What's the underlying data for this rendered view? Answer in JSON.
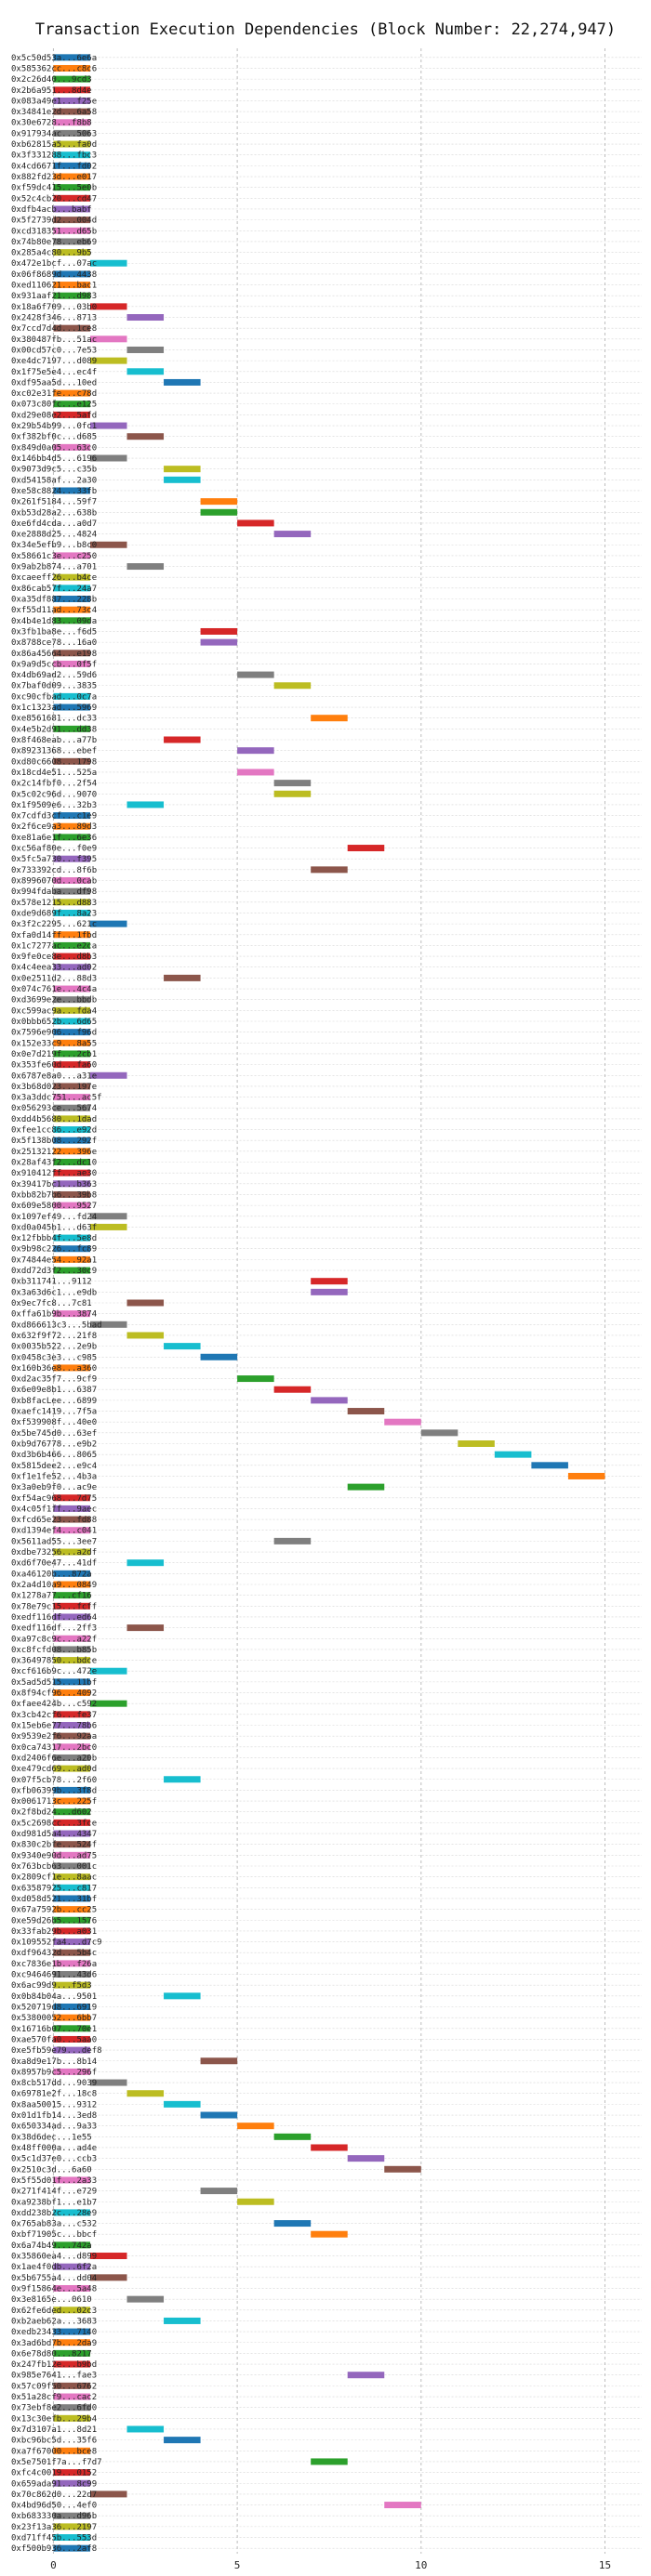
{
  "chart_data": {
    "type": "gantt",
    "title": "Transaction Execution Dependencies (Block Number: 22,274,947)",
    "xlabel": "",
    "ylabel": "",
    "xlim": [
      -1.2,
      16
    ],
    "xticks": [
      0,
      5,
      10,
      15
    ],
    "grid": true,
    "legend": "none",
    "palette": [
      "#1f77b4",
      "#ff7f0e",
      "#2ca02c",
      "#d62728",
      "#9467bd",
      "#8c564b",
      "#e377c2",
      "#7f7f7f",
      "#bcbd22",
      "#17becf"
    ],
    "transactions": [
      [
        "0x5c50d53a...6e6a",
        0
      ],
      [
        "0x585362cc...c8c6",
        0
      ],
      [
        "0x2c26d40...9cd3",
        0
      ],
      [
        "0x2b6a951...8d4e",
        0
      ],
      [
        "0x083a49e1...f25e",
        0
      ],
      [
        "0x34841e2d...6a58",
        0
      ],
      [
        "0x30e6728...f8b8",
        0
      ],
      [
        "0x917934ac...5063",
        0
      ],
      [
        "0xb62815a5...fa0d",
        0
      ],
      [
        "0x3f331288...fbc3",
        0
      ],
      [
        "0x4cd6671f...fd02",
        0
      ],
      [
        "0x882fd23d...e017",
        0
      ],
      [
        "0xf59dc415...5e0b",
        0
      ],
      [
        "0x52c4cb20...cd47",
        0
      ],
      [
        "0xdfb4acb...babf",
        0
      ],
      [
        "0x5f2739d2...004d",
        0
      ],
      [
        "0xcd318351...d65b",
        0
      ],
      [
        "0x74b80e78...eb69",
        0
      ],
      [
        "0x285a4c80...9b5",
        0
      ],
      [
        "0x472e1bcf...07ac",
        1
      ],
      [
        "0x06f8689d...4438",
        0
      ],
      [
        "0xed110621...bac1",
        0
      ],
      [
        "0x931aaf21...d983",
        0
      ],
      [
        "0x18a6f709...03b0",
        1
      ],
      [
        "0x2428f346...8713",
        2
      ],
      [
        "0x7ccd7d4d...1ce8",
        0
      ],
      [
        "0x380487fb...51ac",
        1
      ],
      [
        "0x00cd57c0...7e53",
        2
      ],
      [
        "0xe4dc7197...d089",
        1
      ],
      [
        "0x1f75e5e4...ec4f",
        2
      ],
      [
        "0xdf95aa5d...10ed",
        3
      ],
      [
        "0xc02e31fe...c78d",
        0
      ],
      [
        "0x073c80fc...e125",
        0
      ],
      [
        "0xd29e08e2...5afd",
        0
      ],
      [
        "0x29b54b99...0fc1",
        1
      ],
      [
        "0xf382bf0c...d685",
        2
      ],
      [
        "0x849d0a05...63c0",
        0
      ],
      [
        "0x146bb4d5...6196",
        1
      ],
      [
        "0x9073d9c5...c35b",
        3
      ],
      [
        "0xd54158af...2a30",
        3
      ],
      [
        "0xe58c8824...33fb",
        0
      ],
      [
        "0x261f5184...59f7",
        4
      ],
      [
        "0xb53d28a2...638b",
        4
      ],
      [
        "0xe6fd4cda...a0d7",
        5
      ],
      [
        "0xe2888d25...4824",
        6
      ],
      [
        "0x34e5efb9...b8c0",
        1
      ],
      [
        "0x58661c3e...c250",
        0
      ],
      [
        "0x9ab2b874...a701",
        2
      ],
      [
        "0xcaeeff26...b4ce",
        0
      ],
      [
        "0x86cab57f...24a7",
        0
      ],
      [
        "0xa35df887...228b",
        0
      ],
      [
        "0xf55d11ad...73c4",
        0
      ],
      [
        "0x4b4e1d83...09da",
        0
      ],
      [
        "0x3fb1ba8e...f6d5",
        4
      ],
      [
        "0x8788ce78...16a0",
        4
      ],
      [
        "0x86a45664...e198",
        0
      ],
      [
        "0x9a9d5ccb...0f5f",
        0
      ],
      [
        "0x4db69ad2...59d6",
        5
      ],
      [
        "0x7baf0d09...3835",
        6
      ],
      [
        "0xc90cfbad...0c7a",
        0
      ],
      [
        "0x1c1323ad...5969",
        0
      ],
      [
        "0xe8561681...dc33",
        7
      ],
      [
        "0x4e5b2d91...dd38",
        0
      ],
      [
        "0x8f468eab...a77b",
        3
      ],
      [
        "0x89231368...ebef",
        5
      ],
      [
        "0xd80c6608...1798",
        0
      ],
      [
        "0x18cd4e51...525a",
        5
      ],
      [
        "0x2c14fbf0...2f54",
        6
      ],
      [
        "0x5c02c96d...9070",
        6
      ],
      [
        "0x1f9509e6...32b3",
        2
      ],
      [
        "0x7cdfd3cf...c1e9",
        0
      ],
      [
        "0x2f6ce9a3...89d3",
        0
      ],
      [
        "0xe81a6e1f...6e36",
        0
      ],
      [
        "0xc56af80e...f0e9",
        8
      ],
      [
        "0x5fc5a730...f395",
        0
      ],
      [
        "0x733392cd...8f6b",
        7
      ],
      [
        "0x8996070d...0cab",
        0
      ],
      [
        "0x994fdaba...df98",
        0
      ],
      [
        "0x578e1215...d883",
        0
      ],
      [
        "0xde9d689f...8a23",
        0
      ],
      [
        "0x3f2c2295...621c",
        1
      ],
      [
        "0xfa0d14ff...1fbd",
        0
      ],
      [
        "0x1c7277ac...e2ca",
        0
      ],
      [
        "0x9fe0ce8e...d8b3",
        0
      ],
      [
        "0x4c4eea33...ad02",
        0
      ],
      [
        "0x0e2511d2...88d3",
        3
      ],
      [
        "0x074c761e...4c4a",
        0
      ],
      [
        "0xd3699e2e...bbdb",
        0
      ],
      [
        "0xc599ac9a...fda4",
        0
      ],
      [
        "0x0bbb652b...6d65",
        0
      ],
      [
        "0x7596e906...f96d",
        0
      ],
      [
        "0x152e33c9...8a55",
        0
      ],
      [
        "0x0e7d219f...2cb1",
        0
      ],
      [
        "0x353fe60d...fa60",
        0
      ],
      [
        "0x6787e8a0...a31e",
        1
      ],
      [
        "0x3b68d023...197e",
        0
      ],
      [
        "0x3a3ddc751...ac5f",
        0
      ],
      [
        "0x056293ce...5674",
        0
      ],
      [
        "0xdd4b5680...1dad",
        0
      ],
      [
        "0xfee1cc86...e92d",
        0
      ],
      [
        "0x5f138b08...292f",
        0
      ],
      [
        "0x25132122...396e",
        0
      ],
      [
        "0x28af43f2...dc10",
        0
      ],
      [
        "0x910412ff...ae30",
        0
      ],
      [
        "0x39417bc1...b363",
        0
      ],
      [
        "0xbb82b7b6...39b8",
        0
      ],
      [
        "0x609e5800...9527",
        0
      ],
      [
        "0x1097ef49...fd24",
        1
      ],
      [
        "0xd0a045b1...d63f",
        1
      ],
      [
        "0x12fbbb4f...5e8d",
        0
      ],
      [
        "0x9b98c226...fc89",
        0
      ],
      [
        "0x74844e54...92a1",
        0
      ],
      [
        "0xdd72d3f2...30c9",
        0
      ],
      [
        "0xb311741...9112",
        7
      ],
      [
        "0x3a63d6c1...e9db",
        7
      ],
      [
        "0x9ec7fc8...7c81",
        2
      ],
      [
        "0xffa61b9b...3874",
        0
      ],
      [
        "0xd866613c3...5bad",
        1
      ],
      [
        "0x632f9f72...21f8",
        2
      ],
      [
        "0x0035b522...2e9b",
        3
      ],
      [
        "0x0458c3e3...c985",
        4
      ],
      [
        "0x160b36e8...a360",
        0
      ],
      [
        "0xd2ac35f7...9cf9",
        5
      ],
      [
        "0x6e09e8b1...6387",
        6
      ],
      [
        "0xb8facLee...6899",
        7
      ],
      [
        "0xaefc1419...7f5a",
        8
      ],
      [
        "0xf539908f...40e0",
        9
      ],
      [
        "0x5be745d0...63ef",
        10
      ],
      [
        "0xb9d76778...e9b2",
        11
      ],
      [
        "0xd3b6b466...8065",
        12
      ],
      [
        "0x5815dee2...e9c4",
        13
      ],
      [
        "0xf1e1fe52...4b3a",
        14
      ],
      [
        "0x3a0eb9f0...ac9e",
        8
      ],
      [
        "0xf54ac968...7d75",
        0
      ],
      [
        "0x4c05f1ff...9aec",
        0
      ],
      [
        "0xfcd65e23...fd88",
        0
      ],
      [
        "0xd1394ef4...c041",
        0
      ],
      [
        "0x5611ad55...3ee7",
        6
      ],
      [
        "0xdbe73256...a2df",
        0
      ],
      [
        "0xd6f70e47...41df",
        2
      ],
      [
        "0xa46120b...872a",
        0
      ],
      [
        "0x2a4d10a9...0849",
        0
      ],
      [
        "0x1278a77...cf16",
        0
      ],
      [
        "0x78e79c15...fcff",
        0
      ],
      [
        "0xedf116df...ed64",
        0
      ],
      [
        "0xedf116df...2ff3",
        2
      ],
      [
        "0xa97c8c9c...a22f",
        0
      ],
      [
        "0xc8fcfd08...b85b",
        0
      ],
      [
        "0x36497850...bdce",
        0
      ],
      [
        "0xcf616b9c...472e",
        1
      ],
      [
        "0x5ad5d515...11bf",
        0
      ],
      [
        "0x8f94cf96...4092",
        0
      ],
      [
        "0xfaee424b...c592",
        1
      ],
      [
        "0x3cb42cf6...fe37",
        0
      ],
      [
        "0x15eb6e77...78b6",
        0
      ],
      [
        "0x9539e2f6...92aa",
        0
      ],
      [
        "0x0ca74317...2bc0",
        0
      ],
      [
        "0xd2406f6e...a20b",
        0
      ],
      [
        "0xe479cd69...ad0d",
        0
      ],
      [
        "0x07f5cb78...2f60",
        3
      ],
      [
        "0xfb06399b...3f8d",
        0
      ],
      [
        "0x0061713c...225f",
        0
      ],
      [
        "0x2f8bd24...d602",
        0
      ],
      [
        "0x5c2698cc...3fce",
        0
      ],
      [
        "0xd981d5a4...4347",
        0
      ],
      [
        "0x830c2bfe...524f",
        0
      ],
      [
        "0x9340e90d...ad75",
        0
      ],
      [
        "0x763bcb63...001c",
        0
      ],
      [
        "0x2809cf1e...8aac",
        0
      ],
      [
        "0x63587925...c817",
        0
      ],
      [
        "0xd058d521...31bf",
        0
      ],
      [
        "0x67a7592b...cc25",
        0
      ],
      [
        "0xe59d26b5...1576",
        0
      ],
      [
        "0x33fab29b...a031",
        0
      ],
      [
        "0x109552fa4...d7c9",
        0
      ],
      [
        "0xdf96432d...5b4c",
        0
      ],
      [
        "0xc7836e1b...f26a",
        0
      ],
      [
        "0xc9464691...43d6",
        0
      ],
      [
        "0x6ac99d9...f5d3",
        0
      ],
      [
        "0x0b84b04a...9501",
        3
      ],
      [
        "0x520719d8...6919",
        0
      ],
      [
        "0x53800052...6bb7",
        0
      ],
      [
        "0x16716b07...70e1",
        0
      ],
      [
        "0xae570fa0...5aa0",
        0
      ],
      [
        "0xe5fb59e79...def8",
        0
      ],
      [
        "0xa8d9e17b...8b14",
        4
      ],
      [
        "0x8957b9c5...296f",
        0
      ],
      [
        "0x8cb517dd...9039",
        1
      ],
      [
        "0x69781e2f...18c8",
        2
      ],
      [
        "0x8aa50015...9312",
        3
      ],
      [
        "0x01d1fb14...3ed8",
        4
      ],
      [
        "0x650334ad...9a33",
        5
      ],
      [
        "0x38d6dec...1e55",
        6
      ],
      [
        "0x48ff000a...ad4e",
        7
      ],
      [
        "0x5c1d37e0...ccb3",
        8
      ],
      [
        "0x2510c3d...6a60",
        9
      ],
      [
        "0x5f55d01f...2a33",
        0
      ],
      [
        "0x271f414f...e729",
        4
      ],
      [
        "0xa9238bf1...e1b7",
        5
      ],
      [
        "0xdd238b2c...28e9",
        0
      ],
      [
        "0x765ab83a...c532",
        6
      ],
      [
        "0xbf71905c...bbcf",
        7
      ],
      [
        "0x6a74b49...742a",
        0
      ],
      [
        "0x35860ea4...d899",
        1
      ],
      [
        "0x1ae4f0db...6f2a",
        0
      ],
      [
        "0x5b6755a4...dd04",
        1
      ],
      [
        "0x9f15864e...5a48",
        0
      ],
      [
        "0x3e8165e...0610",
        2
      ],
      [
        "0x62fe6ded...02c3",
        0
      ],
      [
        "0xb2aeb62a...3683",
        3
      ],
      [
        "0xedb23433...7140",
        0
      ],
      [
        "0x3ad6bd7b...2da9",
        0
      ],
      [
        "0x6e78d80...8217",
        0
      ],
      [
        "0x247fb12e...b9bd",
        0
      ],
      [
        "0x985e7641...fae3",
        8
      ],
      [
        "0x57c09f50...6762",
        0
      ],
      [
        "0x51a28cf9...cac2",
        0
      ],
      [
        "0x73ebf8e2...6fd0",
        0
      ],
      [
        "0x13c30efb...29b4",
        0
      ],
      [
        "0x7d3107a1...8d21",
        2
      ],
      [
        "0xbc96bc5d...35f6",
        3
      ],
      [
        "0xa7f67000...bce8",
        0
      ],
      [
        "0x5e7501f7a...f7d7",
        7
      ],
      [
        "0xfc4c0019...0152",
        0
      ],
      [
        "0x659ada91...8c99",
        0
      ],
      [
        "0x70c862d0...22d7",
        1
      ],
      [
        "0x4bd96d50...4ef0",
        9
      ],
      [
        "0xb683330a...d96b",
        0
      ],
      [
        "0x23f13a36...2197",
        0
      ],
      [
        "0xd71ff45b...553d",
        0
      ],
      [
        "0xf500b936...2af8",
        0
      ]
    ]
  }
}
